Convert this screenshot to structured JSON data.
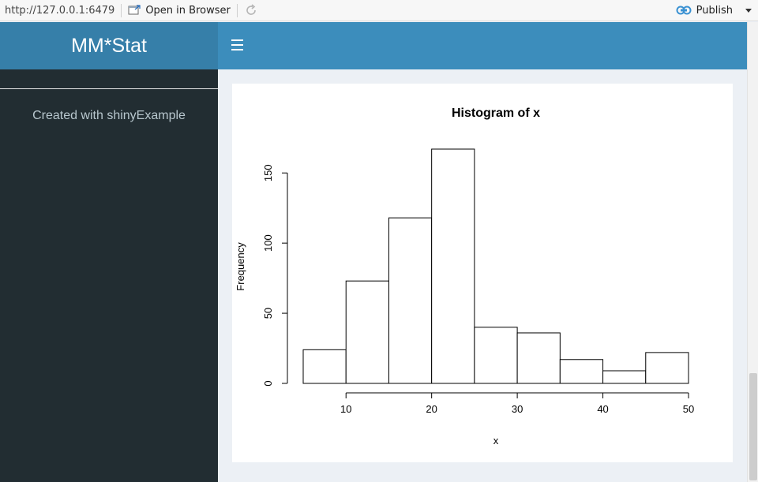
{
  "viewer": {
    "url": "http://127.0.0.1:6479",
    "open_browser_label": "Open in Browser",
    "publish_label": "Publish"
  },
  "app": {
    "title": "MM*Stat",
    "sidebar_credit": "Created with shinyExample"
  },
  "colors": {
    "logo_bg": "#367fa9",
    "navbar_bg": "#3c8dbc",
    "sidebar_bg": "#222d32",
    "content_bg": "#ecf0f5"
  },
  "chart_data": {
    "type": "bar",
    "title": "Histogram of x",
    "xlabel": "x",
    "ylabel": "Frequency",
    "bin_edges": [
      5,
      10,
      15,
      20,
      25,
      30,
      35,
      40,
      45,
      50
    ],
    "values": [
      24,
      73,
      118,
      167,
      40,
      36,
      17,
      9,
      22
    ],
    "x_ticks": [
      10,
      20,
      30,
      40,
      50
    ],
    "y_ticks": [
      0,
      50,
      100,
      150
    ],
    "xlim": [
      5,
      50
    ],
    "ylim": [
      0,
      167
    ],
    "grid": false
  }
}
